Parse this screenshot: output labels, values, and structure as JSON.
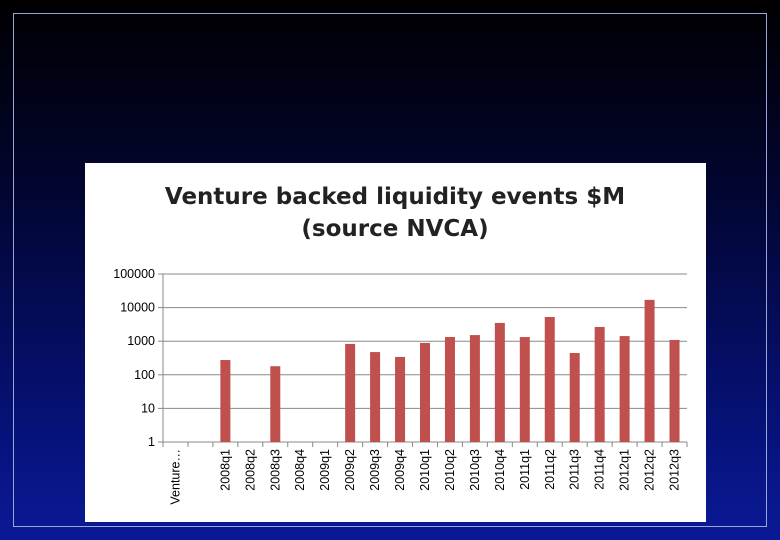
{
  "chart_data": {
    "type": "bar",
    "title": "Venture backed liquidity events $M (source NVCA)",
    "categories": [
      "Venture…",
      null,
      "2008q1",
      "2008q2",
      "2008q3",
      "2008q4",
      "2009q1",
      "2009q2",
      "2009q3",
      "2009q4",
      "2010q1",
      "2010q2",
      "2010q3",
      "2010q4",
      "2011q1",
      "2011q2",
      "2011q3",
      "2011q4",
      "2012q1",
      "2012q2",
      "2012q3"
    ],
    "values": [
      null,
      null,
      275,
      null,
      180,
      null,
      null,
      830,
      475,
      340,
      890,
      1330,
      1520,
      3500,
      1330,
      5250,
      445,
      2650,
      1420,
      17000,
      1090
    ],
    "color": "#c0504d",
    "log": true,
    "ylim": [
      1,
      100000
    ],
    "yticks": [
      1,
      10,
      100,
      1000,
      10000,
      100000
    ],
    "grid": true
  }
}
